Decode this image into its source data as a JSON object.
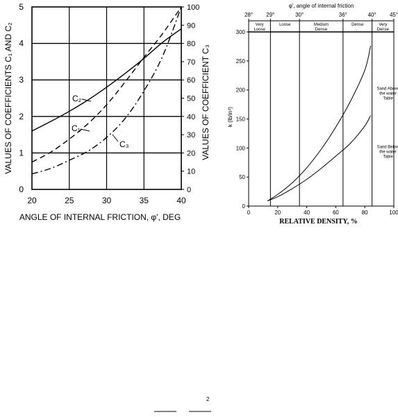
{
  "chart_data": [
    {
      "type": "line",
      "xlabel": "ANGLE OF INTERNAL FRICTION, φ', DEG",
      "ylabel_left": "VALUES OF COEFFICIENTS C₁ AND C₂",
      "ylabel_right": "VALUES OF COEFFICIENT C₃",
      "xlim": [
        20,
        40
      ],
      "ylim_left": [
        0,
        5
      ],
      "ylim_right": [
        0,
        100
      ],
      "x_ticks": [
        20,
        25,
        30,
        35,
        40
      ],
      "y_left_ticks": [
        0,
        1,
        2,
        3,
        4,
        5
      ],
      "y_right_ticks": [
        0,
        10,
        20,
        30,
        40,
        50,
        60,
        70,
        80,
        90,
        100
      ],
      "grid": true,
      "series": [
        {
          "name": "C₂",
          "axis": "left",
          "style": "solid",
          "x": [
            20,
            22.5,
            25,
            27.5,
            30,
            32.5,
            35,
            37.5,
            40
          ],
          "y": [
            1.6,
            1.86,
            2.14,
            2.45,
            2.8,
            3.18,
            3.59,
            4.03,
            4.4
          ]
        },
        {
          "name": "C₁",
          "axis": "left",
          "style": "dashed",
          "x": [
            20,
            22.5,
            25,
            27.5,
            30,
            32.5,
            35,
            37.5,
            40
          ],
          "y": [
            0.75,
            1.02,
            1.38,
            1.8,
            2.32,
            2.95,
            3.62,
            4.27,
            5.0
          ]
        },
        {
          "name": "C₃",
          "axis": "right",
          "style": "dashdot",
          "x": [
            20,
            22.5,
            25,
            27.5,
            30,
            32.5,
            35,
            37.5,
            40
          ],
          "y": [
            8.5,
            11.5,
            16,
            21,
            28.5,
            39,
            54,
            73,
            100
          ]
        }
      ]
    },
    {
      "type": "line",
      "xlabel": "RELATIVE DENSITY, %",
      "ylabel": "k (lb/in³)",
      "top_label": "φ', angle of internal friction",
      "xlim": [
        0,
        100
      ],
      "ylim": [
        0,
        300
      ],
      "x_ticks": [
        0,
        20,
        40,
        60,
        80,
        100
      ],
      "y_ticks": [
        0,
        50,
        100,
        150,
        200,
        250,
        300
      ],
      "top_ticks": [
        {
          "label": "28°",
          "x": 0
        },
        {
          "label": "29°",
          "x": 15
        },
        {
          "label": "30°",
          "x": 35
        },
        {
          "label": "36°",
          "x": 65
        },
        {
          "label": "40°",
          "x": 85
        },
        {
          "label": "45°",
          "x": 100
        }
      ],
      "boundaries_x": [
        15,
        35,
        65,
        85
      ],
      "zones": [
        {
          "label": [
            "Very",
            "Loose"
          ],
          "x_from": 0,
          "x_to": 15
        },
        {
          "label": [
            "Loose"
          ],
          "x_from": 15,
          "x_to": 35
        },
        {
          "label": [
            "Medium",
            "Dense"
          ],
          "x_from": 35,
          "x_to": 65
        },
        {
          "label": [
            "Dense"
          ],
          "x_from": 65,
          "x_to": 85
        },
        {
          "label": [
            "Very",
            "Dense"
          ],
          "x_from": 85,
          "x_to": 100
        }
      ],
      "series": [
        {
          "name": "Sand Above the water Table",
          "label_lines": [
            "Sand Above",
            "the water",
            "Table"
          ],
          "label_at": [
            96,
            200
          ],
          "x": [
            13,
            20,
            30,
            40,
            50,
            60,
            70,
            80,
            84
          ],
          "y": [
            9,
            20,
            40,
            66,
            98,
            136,
            180,
            234,
            276
          ]
        },
        {
          "name": "Sand Below the water Table",
          "label_lines": [
            "Sand Below",
            "the water",
            "Table"
          ],
          "label_at": [
            96,
            100
          ],
          "x": [
            13,
            20,
            30,
            40,
            50,
            60,
            70,
            80,
            84
          ],
          "y": [
            9,
            16,
            30,
            46,
            65,
            86,
            108,
            138,
            156
          ]
        }
      ]
    }
  ],
  "page_footer": {
    "superscript": "2"
  }
}
